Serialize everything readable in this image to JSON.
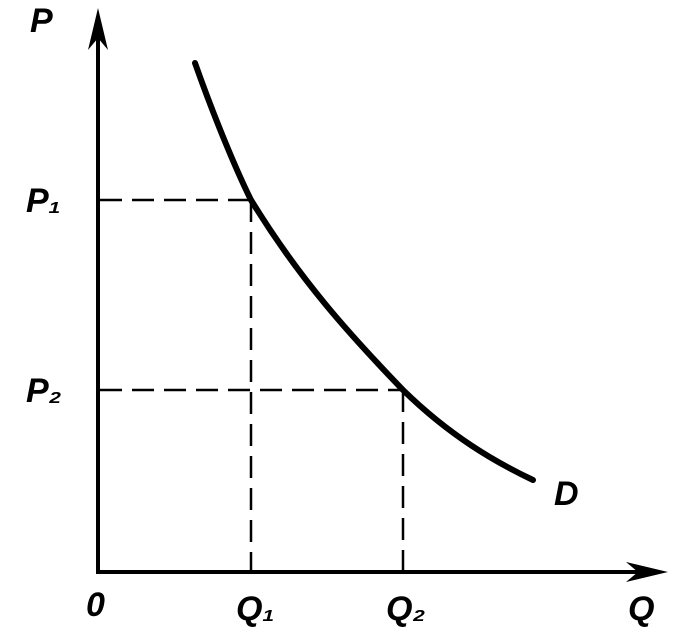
{
  "axes": {
    "y_label": "P",
    "x_label": "Q",
    "origin": "0"
  },
  "levels": [
    {
      "price": "P₁",
      "quantity": "Q₁"
    },
    {
      "price": "P₂",
      "quantity": "Q₂"
    }
  ],
  "curve_label": "D"
}
